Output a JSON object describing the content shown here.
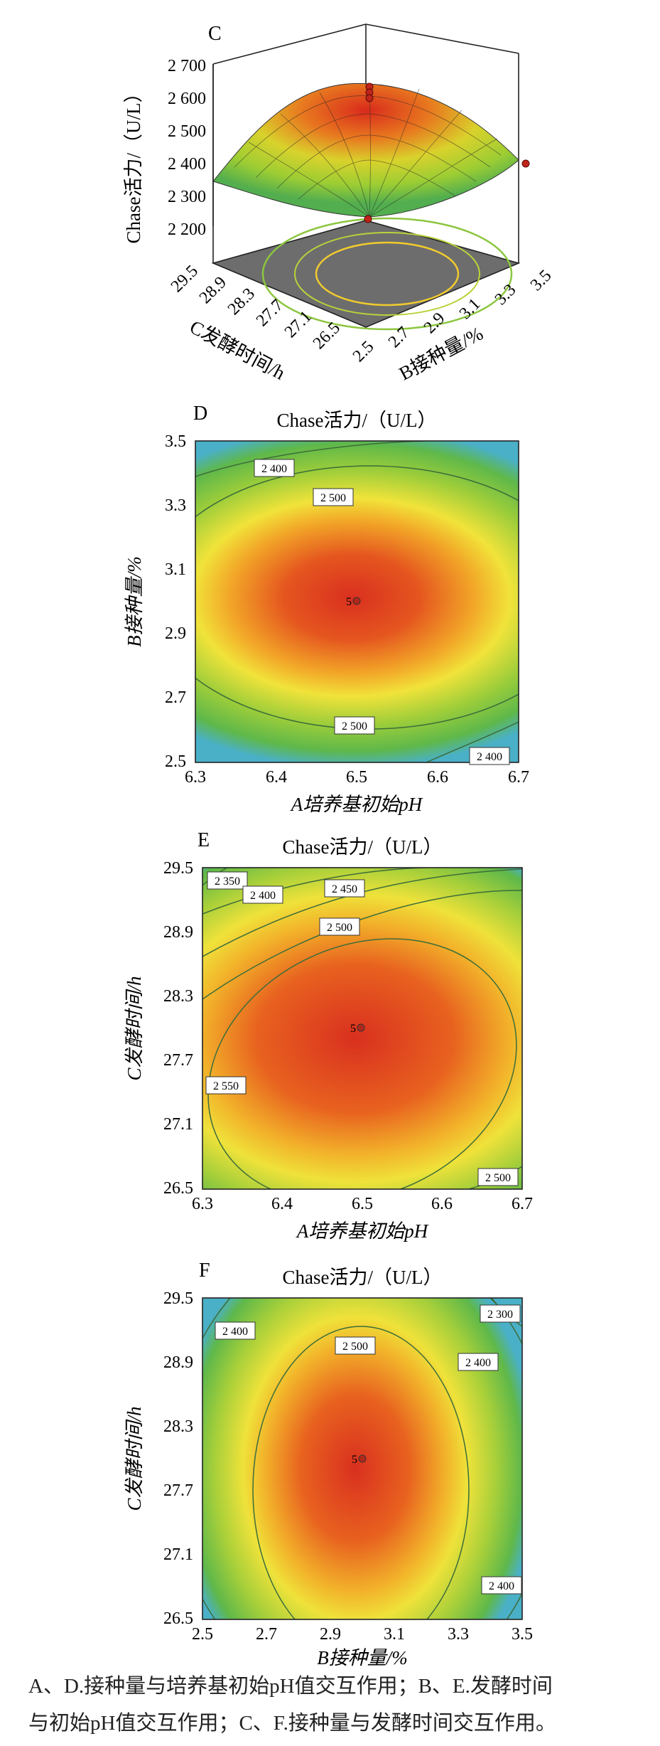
{
  "panels": {
    "C": {
      "letter": "C",
      "zlabel": "Chase活力/（U/L）",
      "zticks": [
        "2 700",
        "2 600",
        "2 500",
        "2 400",
        "2 300",
        "2 200"
      ],
      "cticks": [
        "29.5",
        "28.9",
        "28.3",
        "27.7",
        "27.1",
        "26.5"
      ],
      "bticks": [
        "2.5",
        "2.7",
        "2.9",
        "3.1",
        "3.3",
        "3.5"
      ],
      "clabel": "C发酵时间/h",
      "blabel": "B接种量/%"
    },
    "D": {
      "letter": "D",
      "title": "Chase活力/（U/L）",
      "xlabel": "A培养基初始pH",
      "ylabel": "B接种量/%",
      "xticks": [
        "6.3",
        "6.4",
        "6.5",
        "6.6",
        "6.7"
      ],
      "yticks": [
        "3.5",
        "3.3",
        "3.1",
        "2.9",
        "2.7",
        "2.5"
      ],
      "contours": [
        "2 400",
        "2 500",
        "2 500",
        "2 400"
      ],
      "center": "5"
    },
    "E": {
      "letter": "E",
      "title": "Chase活力/（U/L）",
      "xlabel": "A培养基初始pH",
      "ylabel": "C发酵时间/h",
      "xticks": [
        "6.3",
        "6.4",
        "6.5",
        "6.6",
        "6.7"
      ],
      "yticks": [
        "29.5",
        "28.9",
        "28.3",
        "27.7",
        "27.1",
        "26.5"
      ],
      "contours": [
        "2 350",
        "2 400",
        "2 450",
        "2 500",
        "2 550",
        "2 500"
      ],
      "center": "5"
    },
    "F": {
      "letter": "F",
      "title": "Chase活力/（U/L）",
      "xlabel": "B接种量/%",
      "ylabel": "C发酵时间/h",
      "xticks": [
        "2.5",
        "2.7",
        "2.9",
        "3.1",
        "3.3",
        "3.5"
      ],
      "yticks": [
        "29.5",
        "28.9",
        "28.3",
        "27.7",
        "27.1",
        "26.5"
      ],
      "contours": [
        "2 400",
        "2 500",
        "2 300",
        "2 400",
        "2 400"
      ],
      "center": "5"
    }
  },
  "caption": {
    "line1": "A、D.接种量与培养基初始pH值交互作用；B、E.发酵时间",
    "line2": "与初始pH值交互作用；C、F.接种量与发酵时间交互作用。"
  },
  "chart_data": [
    {
      "type": "surface",
      "panel": "C",
      "x_name": "B接种量/%",
      "y_name": "C发酵时间/h",
      "z_name": "Chase活力/（U/L）",
      "x_range": [
        2.5,
        3.5
      ],
      "y_range": [
        26.5,
        29.5
      ],
      "z_range": [
        2200,
        2700
      ],
      "peak_z": 2630
    },
    {
      "type": "heatmap",
      "panel": "D",
      "title": "Chase活力/（U/L）",
      "xlabel": "A培养基初始pH",
      "ylabel": "B接种量/%",
      "xlim": [
        6.3,
        6.7
      ],
      "ylim": [
        2.5,
        3.5
      ],
      "contour_levels": [
        2400,
        2500
      ],
      "center_point": [
        6.5,
        3.0
      ]
    },
    {
      "type": "heatmap",
      "panel": "E",
      "title": "Chase活力/（U/L）",
      "xlabel": "A培养基初始pH",
      "ylabel": "C发酵时间/h",
      "xlim": [
        6.3,
        6.7
      ],
      "ylim": [
        26.5,
        29.5
      ],
      "contour_levels": [
        2350,
        2400,
        2450,
        2500,
        2550
      ],
      "center_point": [
        6.5,
        28.0
      ]
    },
    {
      "type": "heatmap",
      "panel": "F",
      "title": "Chase活力/（U/L）",
      "xlabel": "B接种量/%",
      "ylabel": "C发酵时间/h",
      "xlim": [
        2.5,
        3.5
      ],
      "ylim": [
        26.5,
        29.5
      ],
      "contour_levels": [
        2300,
        2400,
        2500
      ],
      "center_point": [
        3.0,
        28.0
      ]
    }
  ]
}
